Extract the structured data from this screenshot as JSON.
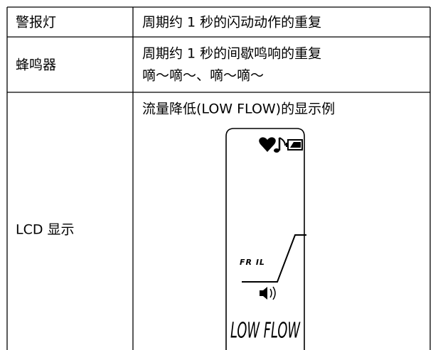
{
  "table": {
    "rows": [
      [
        "警报灯",
        "周期约 1 秒的闪动动作的重复"
      ],
      [
        "蜂鸣器",
        [
          "周期约 1 秒的间歇鸣响的重复",
          "嘀～嘀～、嘀～嘀～"
        ]
      ],
      [
        "LCD 显示",
        "流量降低(LOW FLOW)的显示例"
      ]
    ]
  },
  "lcd": {
    "indicator": "FR IL",
    "message": "LOW FLOW"
  }
}
